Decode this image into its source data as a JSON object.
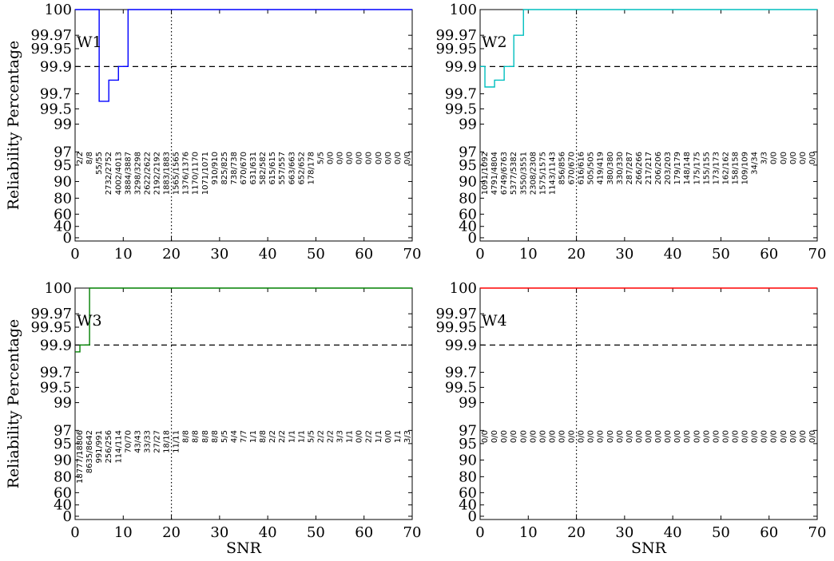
{
  "figure": {
    "ylabel": "Reliability Percentage",
    "xlabel": "SNR",
    "reference_line": {
      "y": 99.9,
      "style": "dashed"
    },
    "snr_marker": {
      "x": 20,
      "style": "dotted"
    }
  },
  "chart_data": [
    {
      "type": "line",
      "title": "W1",
      "color": "#0000ff",
      "xlabel": "",
      "ylabel": "Reliability Percentage",
      "xlim": [
        0,
        70
      ],
      "xticks": [
        "0",
        "10",
        "20",
        "30",
        "40",
        "50",
        "60",
        "70"
      ],
      "yticks": [
        "0",
        "40",
        "60",
        "80",
        "90",
        "95",
        "97",
        "99",
        "99.5",
        "99.7",
        "99.9",
        "99.95",
        "99.97",
        "100"
      ],
      "scale": "reliability (nonlinear)",
      "step_x": [
        0,
        5,
        7,
        9,
        11,
        70
      ],
      "step_y": [
        100,
        99.6,
        99.8,
        99.9,
        100,
        100
      ],
      "counts": [
        "2/2",
        "8/8",
        "55/55",
        "2732/2752",
        "4002/4013",
        "3884/3887",
        "3298/3298",
        "2622/2622",
        "2192/2192",
        "1883/1883",
        "1565/1565",
        "1376/1376",
        "1170/1170",
        "1071/1071",
        "910/910",
        "825/825",
        "738/738",
        "670/670",
        "631/631",
        "582/582",
        "615/615",
        "557/557",
        "663/663",
        "652/652",
        "178/178",
        "5/5",
        "0/0",
        "0/0",
        "0/0",
        "0/0",
        "0/0",
        "0/0",
        "0/0",
        "0/0",
        "0/0"
      ]
    },
    {
      "type": "line",
      "title": "W2",
      "color": "#00bfbf",
      "xlabel": "",
      "ylabel": "",
      "xlim": [
        0,
        70
      ],
      "xticks": [
        "0",
        "10",
        "20",
        "30",
        "40",
        "50",
        "60",
        "70"
      ],
      "yticks": [
        "0",
        "40",
        "60",
        "80",
        "90",
        "95",
        "97",
        "99",
        "99.5",
        "99.7",
        "99.9",
        "99.95",
        "99.97",
        "100"
      ],
      "scale": "reliability (nonlinear)",
      "step_x": [
        0,
        1,
        3,
        5,
        7,
        9,
        70
      ],
      "step_y": [
        99.9,
        99.75,
        99.8,
        99.9,
        99.97,
        100,
        100
      ],
      "counts": [
        "1091/1092",
        "4791/4804",
        "6749/6763",
        "5377/5382",
        "3550/3551",
        "2308/2308",
        "1575/1575",
        "1143/1143",
        "856/856",
        "670/670",
        "616/616",
        "505/505",
        "419/419",
        "380/380",
        "330/330",
        "287/287",
        "266/266",
        "217/217",
        "206/206",
        "203/203",
        "179/179",
        "148/148",
        "175/175",
        "155/155",
        "173/173",
        "162/162",
        "158/158",
        "109/109",
        "34/34",
        "3/3",
        "0/0",
        "0/0",
        "0/0",
        "0/0",
        "0/0"
      ]
    },
    {
      "type": "line",
      "title": "W3",
      "color": "#008000",
      "xlabel": "SNR",
      "ylabel": "Reliability Percentage",
      "xlim": [
        0,
        70
      ],
      "xticks": [
        "0",
        "10",
        "20",
        "30",
        "40",
        "50",
        "60",
        "70"
      ],
      "yticks": [
        "0",
        "40",
        "60",
        "80",
        "90",
        "95",
        "97",
        "99",
        "99.5",
        "99.7",
        "99.9",
        "99.95",
        "99.97",
        "100"
      ],
      "scale": "reliability (nonlinear)",
      "step_x": [
        0,
        1,
        3,
        70
      ],
      "step_y": [
        99.85,
        99.9,
        100,
        100
      ],
      "counts": [
        "18777/18806",
        "8635/8642",
        "991/991",
        "256/256",
        "114/114",
        "70/70",
        "43/43",
        "33/33",
        "27/27",
        "18/18",
        "11/11",
        "8/8",
        "8/8",
        "8/8",
        "8/8",
        "5/5",
        "4/4",
        "7/7",
        "1/1",
        "8/8",
        "2/2",
        "2/2",
        "1/1",
        "1/1",
        "5/5",
        "2/2",
        "2/2",
        "3/3",
        "1/1",
        "0/0",
        "2/2",
        "1/1",
        "0/0",
        "1/1",
        "3/3"
      ]
    },
    {
      "type": "line",
      "title": "W4",
      "color": "#ff0000",
      "xlabel": "SNR",
      "ylabel": "",
      "xlim": [
        0,
        70
      ],
      "xticks": [
        "0",
        "10",
        "20",
        "30",
        "40",
        "50",
        "60",
        "70"
      ],
      "yticks": [
        "0",
        "40",
        "60",
        "80",
        "90",
        "95",
        "97",
        "99",
        "99.5",
        "99.7",
        "99.9",
        "99.95",
        "99.97",
        "100"
      ],
      "scale": "reliability (nonlinear)",
      "step_x": [
        0,
        70
      ],
      "step_y": [
        100,
        100
      ],
      "counts": [
        "0/0",
        "0/0",
        "0/0",
        "0/0",
        "0/0",
        "0/0",
        "0/0",
        "0/0",
        "0/0",
        "0/0",
        "0/0",
        "0/0",
        "0/0",
        "0/0",
        "0/0",
        "0/0",
        "0/0",
        "0/0",
        "0/0",
        "0/0",
        "0/0",
        "0/0",
        "0/0",
        "0/0",
        "0/0",
        "0/0",
        "0/0",
        "0/0",
        "0/0",
        "0/0",
        "0/0",
        "0/0",
        "0/0",
        "0/0",
        "0/0"
      ]
    }
  ]
}
